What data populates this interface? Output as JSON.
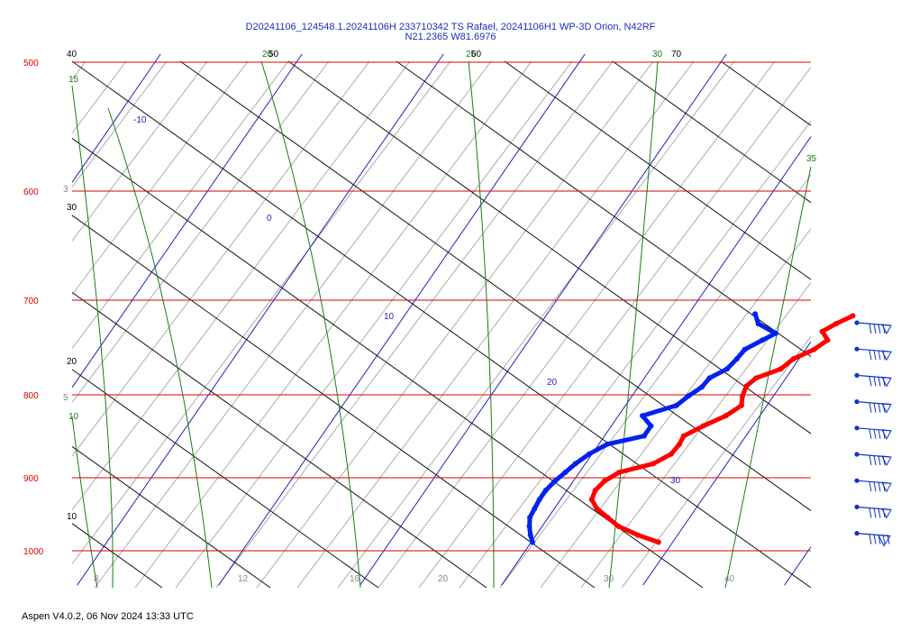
{
  "header": {
    "line1": "D20241106_124548.1.20241106H 233710342 TS Rafael, 20241106H1 WP-3D Orion, N42RF",
    "line2": "N21.2365 W81.6976"
  },
  "footer": "Aspen V4.0.2, 06 Nov  2024  13:33 UTC",
  "colors": {
    "isobar": "#dd0000",
    "isotherm": "#2222bb",
    "dry_adiabat": "#111111",
    "moist_adiabat": "#1a7a1a",
    "mixing_ratio": "#999999",
    "temperature": "#ff0000",
    "dewpoint": "#0022ee",
    "wind_barb": "#1133cc"
  },
  "chart_data": {
    "type": "scatter",
    "title": "",
    "pressure_levels": [
      "500",
      "600",
      "700",
      "800",
      "900",
      "1000"
    ],
    "isotherm_labels": [
      "-10",
      "0",
      "10",
      "20",
      "30"
    ],
    "dry_adiabat_labels": [
      "40",
      "30",
      "20",
      "10"
    ],
    "moist_adiabat_labels": [
      "15",
      "10",
      "20",
      "25",
      "30",
      "35"
    ],
    "theta_labels": [
      "50",
      "60",
      "70"
    ],
    "mixing_ratio_labels": [
      "8",
      "12",
      "16",
      "20",
      "30",
      "40",
      "3",
      "5"
    ],
    "axes": {
      "y": {
        "label": "",
        "scale": "log",
        "range": [
          1000,
          500
        ],
        "unit": "hPa"
      },
      "x": {
        "label": "",
        "skew": true
      }
    },
    "series": [
      {
        "role": "temperature",
        "points": [
          {
            "p": 717,
            "t": 21.7
          },
          {
            "p": 725,
            "t": 20.9
          },
          {
            "p": 733,
            "t": 20.3
          },
          {
            "p": 742,
            "t": 21.1
          },
          {
            "p": 752,
            "t": 20.6
          },
          {
            "p": 762,
            "t": 19.6
          },
          {
            "p": 773,
            "t": 19.2
          },
          {
            "p": 783,
            "t": 17.9
          },
          {
            "p": 792,
            "t": 17.6
          },
          {
            "p": 803,
            "t": 17.8
          },
          {
            "p": 814,
            "t": 18.2
          },
          {
            "p": 826,
            "t": 17.6
          },
          {
            "p": 838,
            "t": 16.5
          },
          {
            "p": 850,
            "t": 15.6
          },
          {
            "p": 860,
            "t": 15.7
          },
          {
            "p": 872,
            "t": 15.6
          },
          {
            "p": 884,
            "t": 14.8
          },
          {
            "p": 895,
            "t": 12.8
          },
          {
            "p": 906,
            "t": 12.2
          },
          {
            "p": 918,
            "t": 12.0
          },
          {
            "p": 930,
            "t": 12.2
          },
          {
            "p": 942,
            "t": 13.0
          },
          {
            "p": 954,
            "t": 14.2
          },
          {
            "p": 966,
            "t": 15.4
          },
          {
            "p": 978,
            "t": 17.2
          },
          {
            "p": 988,
            "t": 19.0
          }
        ]
      },
      {
        "role": "dewpoint",
        "points": [
          {
            "p": 715,
            "t": 14.7
          },
          {
            "p": 725,
            "t": 15.4
          },
          {
            "p": 735,
            "t": 17.1
          },
          {
            "p": 742,
            "t": 16.5
          },
          {
            "p": 752,
            "t": 15.7
          },
          {
            "p": 762,
            "t": 15.6
          },
          {
            "p": 773,
            "t": 15.4
          },
          {
            "p": 783,
            "t": 14.6
          },
          {
            "p": 793,
            "t": 14.5
          },
          {
            "p": 803,
            "t": 14.0
          },
          {
            "p": 814,
            "t": 13.6
          },
          {
            "p": 826,
            "t": 11.7
          },
          {
            "p": 838,
            "t": 12.8
          },
          {
            "p": 850,
            "t": 12.8
          },
          {
            "p": 860,
            "t": 10.6
          },
          {
            "p": 872,
            "t": 9.8
          },
          {
            "p": 884,
            "t": 9.3
          },
          {
            "p": 895,
            "t": 9.0
          },
          {
            "p": 906,
            "t": 8.7
          },
          {
            "p": 918,
            "t": 8.5
          },
          {
            "p": 930,
            "t": 8.5
          },
          {
            "p": 942,
            "t": 8.6
          },
          {
            "p": 954,
            "t": 8.7
          },
          {
            "p": 966,
            "t": 9.1
          },
          {
            "p": 978,
            "t": 9.6
          },
          {
            "p": 988,
            "t": 10.1
          }
        ]
      }
    ],
    "wind_barbs": [
      {
        "speed_kt": 35
      },
      {
        "speed_kt": 35
      },
      {
        "speed_kt": 40
      },
      {
        "speed_kt": 40
      },
      {
        "speed_kt": 40
      },
      {
        "speed_kt": 40
      },
      {
        "speed_kt": 40
      },
      {
        "speed_kt": 40
      },
      {
        "speed_kt": 50
      }
    ]
  }
}
